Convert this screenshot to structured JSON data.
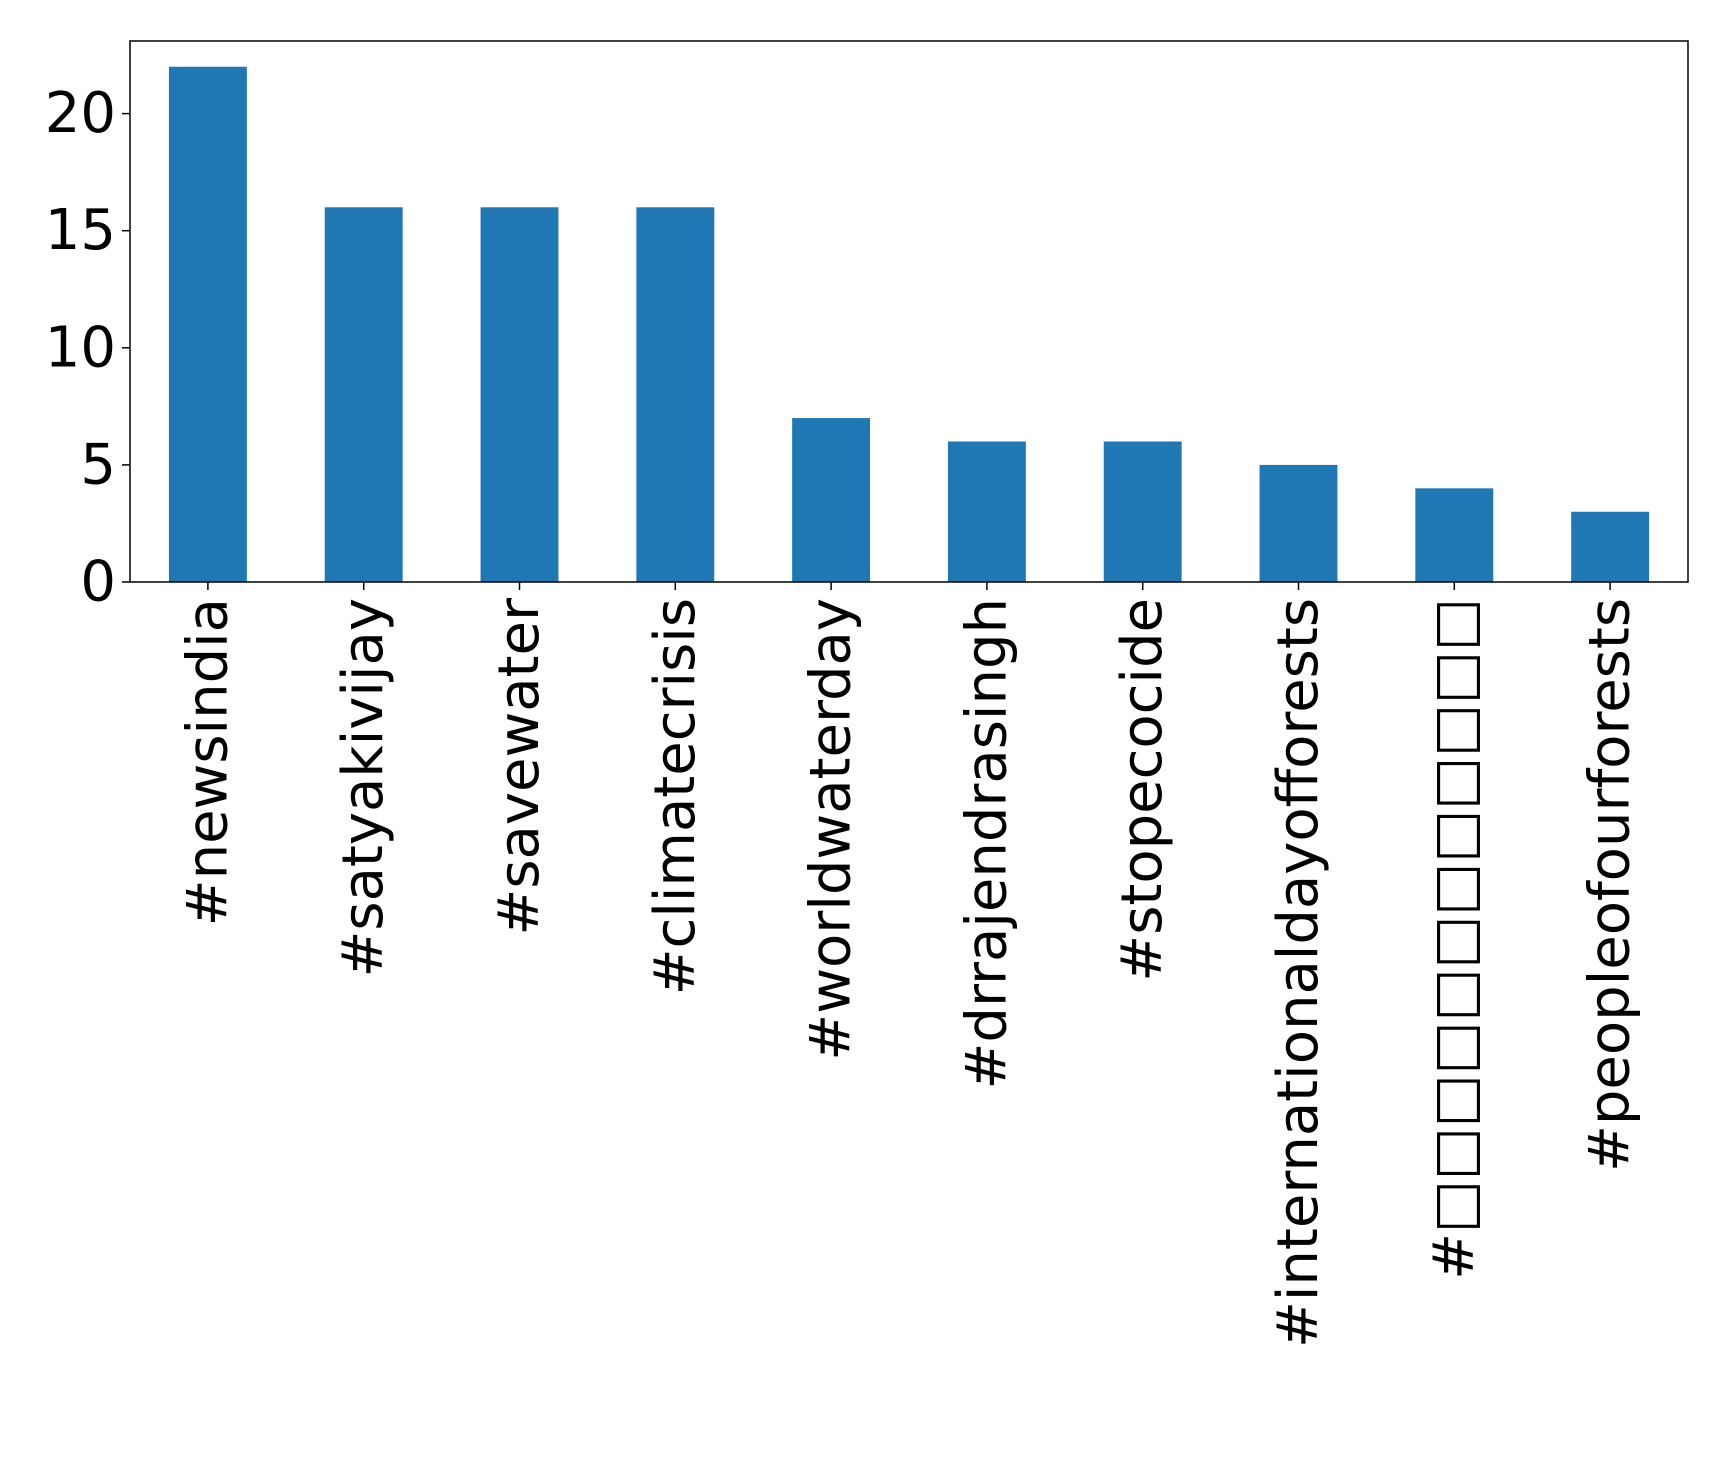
{
  "chart_data": {
    "type": "bar",
    "categories": [
      "#newsindia",
      "#satyakivijay",
      "#savewater",
      "#climatecrisis",
      "#worldwaterday",
      "#drrajendrasingh",
      "#stopecocide",
      "#internationaldayofforests",
      "#□□□□□□□□□□□□",
      "#peopleofourforests"
    ],
    "values": [
      22,
      16,
      16,
      16,
      7,
      6,
      6,
      5,
      4,
      3
    ],
    "title": "",
    "xlabel": "",
    "ylabel": "",
    "ylim": [
      0,
      23.1
    ],
    "yticks": [
      0,
      5,
      10,
      15,
      20
    ],
    "grid": false,
    "bar_color": "#1f77b4"
  }
}
